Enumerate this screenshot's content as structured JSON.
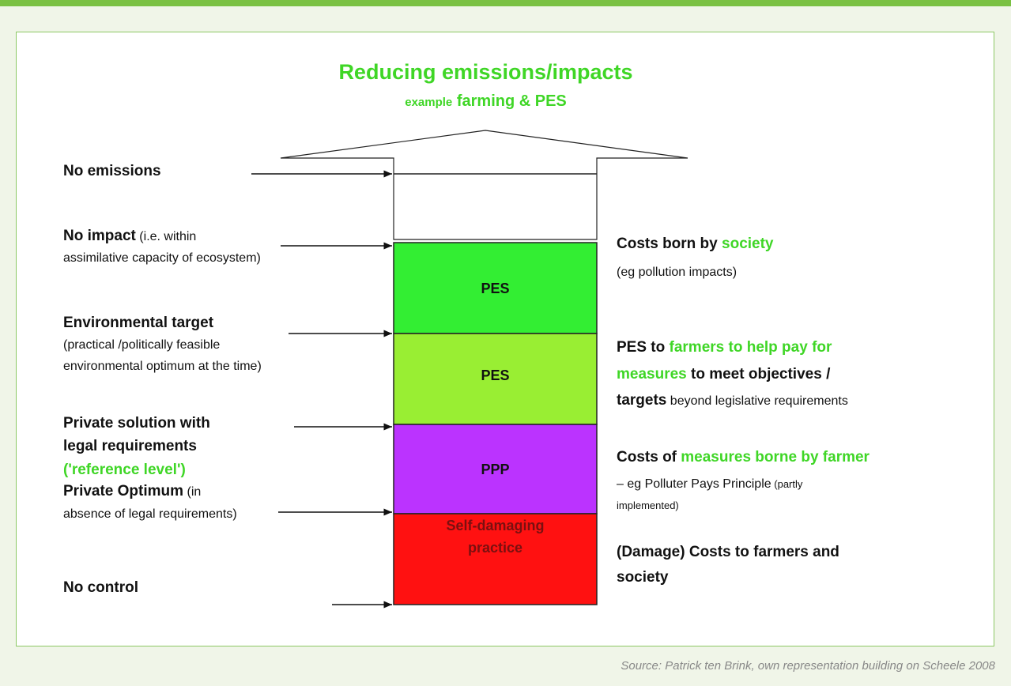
{
  "title": "Reducing emissions/impacts",
  "subtitle": {
    "prefix": "example",
    "main": "farming & PES"
  },
  "left_labels": [
    {
      "lines": [
        [
          "No emissions"
        ]
      ]
    },
    {
      "lines": [
        [
          "No impact",
          " (i.e. within"
        ],
        [
          "assimilative capacity of ecosystem)"
        ]
      ]
    },
    {
      "lines": [
        [
          "Environmental target"
        ],
        [
          "(practical /politically feasible"
        ],
        [
          "environmental optimum at the time)"
        ]
      ]
    },
    {
      "lines": [
        [
          "Private solution with"
        ],
        [
          "legal requirements"
        ],
        [
          "('reference level')"
        ]
      ]
    },
    {
      "lines": [
        [
          "Private Optimum",
          " (in"
        ],
        [
          "absence of legal requirements)"
        ]
      ]
    },
    {
      "lines": [
        [
          "No control"
        ]
      ]
    }
  ],
  "boxes": [
    {
      "lines": [
        "PES"
      ]
    },
    {
      "lines": [
        "PES"
      ]
    },
    {
      "lines": [
        "PPP"
      ]
    },
    {
      "lines": [
        "Self-damaging",
        "practice"
      ]
    }
  ],
  "right_texts": [
    {
      "lines": [
        [
          "Costs born by ",
          "society"
        ],
        [
          "(eg pollution impacts)"
        ]
      ]
    },
    {
      "lines": [
        [
          "PES to ",
          "farmers to help pay for"
        ],
        [
          "measures",
          " to meet objectives /"
        ],
        [
          "targets",
          " beyond legislative requirements"
        ]
      ]
    },
    {
      "lines": [
        [
          "Costs of ",
          "measures borne by farmer"
        ],
        [
          "– eg Polluter Pays Principle",
          " (partly"
        ],
        [
          "implemented)"
        ]
      ]
    },
    {
      "lines": [
        [
          "(Damage) Costs to farmers and"
        ],
        [
          "society"
        ]
      ]
    }
  ],
  "source": "Source: Patrick ten Brink, own representation building on Scheele 2008"
}
